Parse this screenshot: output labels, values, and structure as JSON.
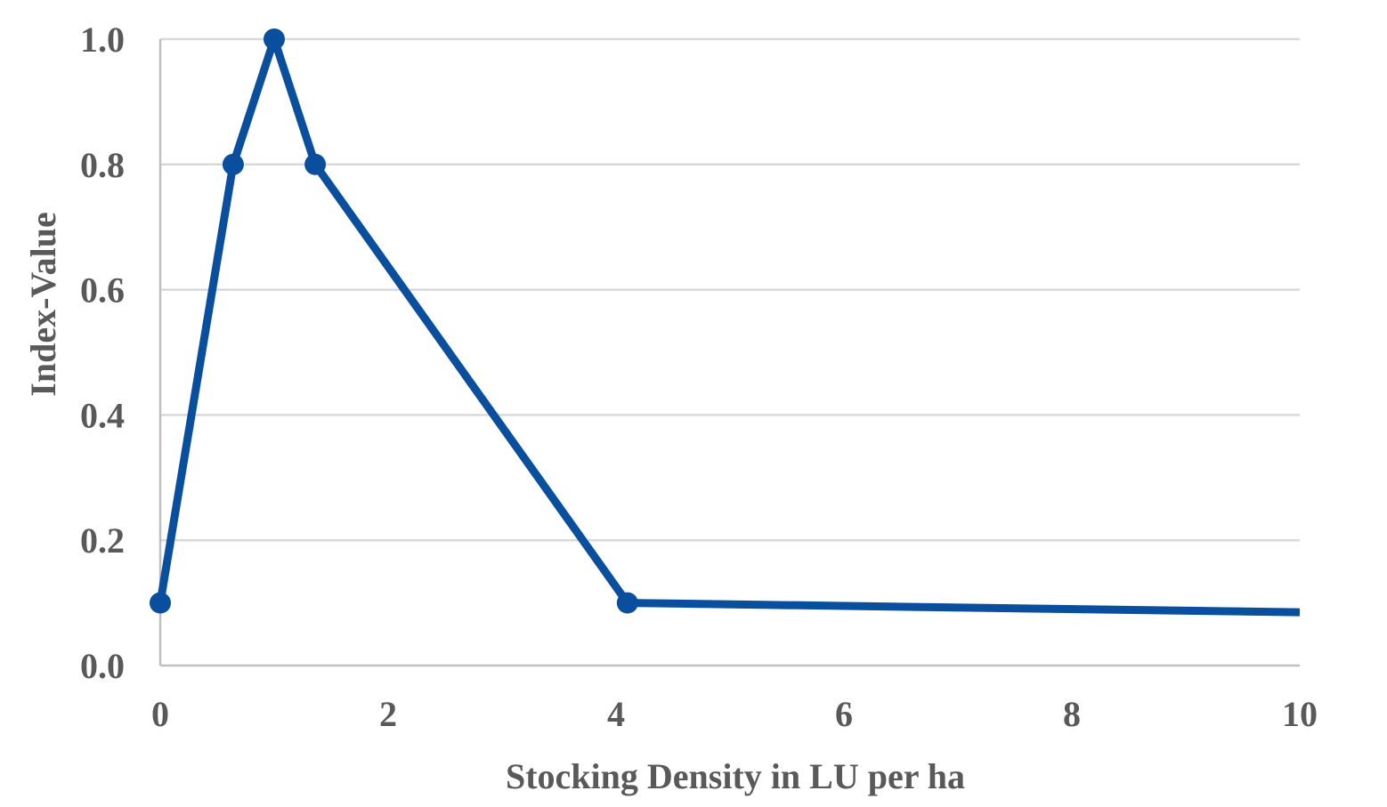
{
  "chart_data": {
    "type": "line",
    "title": "",
    "xlabel": "Stocking Density in LU per ha",
    "ylabel": "Index-Value",
    "xlim": [
      0,
      10
    ],
    "ylim": [
      0,
      1.0
    ],
    "x_ticks": [
      0,
      2,
      4,
      6,
      8,
      10
    ],
    "x_tick_labels": [
      "0",
      "2",
      "4",
      "6",
      "8",
      "10"
    ],
    "y_ticks": [
      0,
      0.2,
      0.4,
      0.6,
      0.8,
      1.0
    ],
    "y_tick_labels": [
      "0.0",
      "0.2",
      "0.4",
      "0.6",
      "0.8",
      "1.0"
    ],
    "grid": "horizontal",
    "legend": "none",
    "series": [
      {
        "color": "#0a4f9e",
        "points": [
          {
            "x": 0,
            "y": 0.1,
            "marker": true
          },
          {
            "x": 0.64,
            "y": 0.8,
            "marker": true
          },
          {
            "x": 1.0,
            "y": 1.0,
            "marker": true
          },
          {
            "x": 1.36,
            "y": 0.8,
            "marker": true
          },
          {
            "x": 4.1,
            "y": 0.1,
            "marker": true
          },
          {
            "x": 10,
            "y": 0.085,
            "marker": false
          }
        ]
      }
    ]
  }
}
